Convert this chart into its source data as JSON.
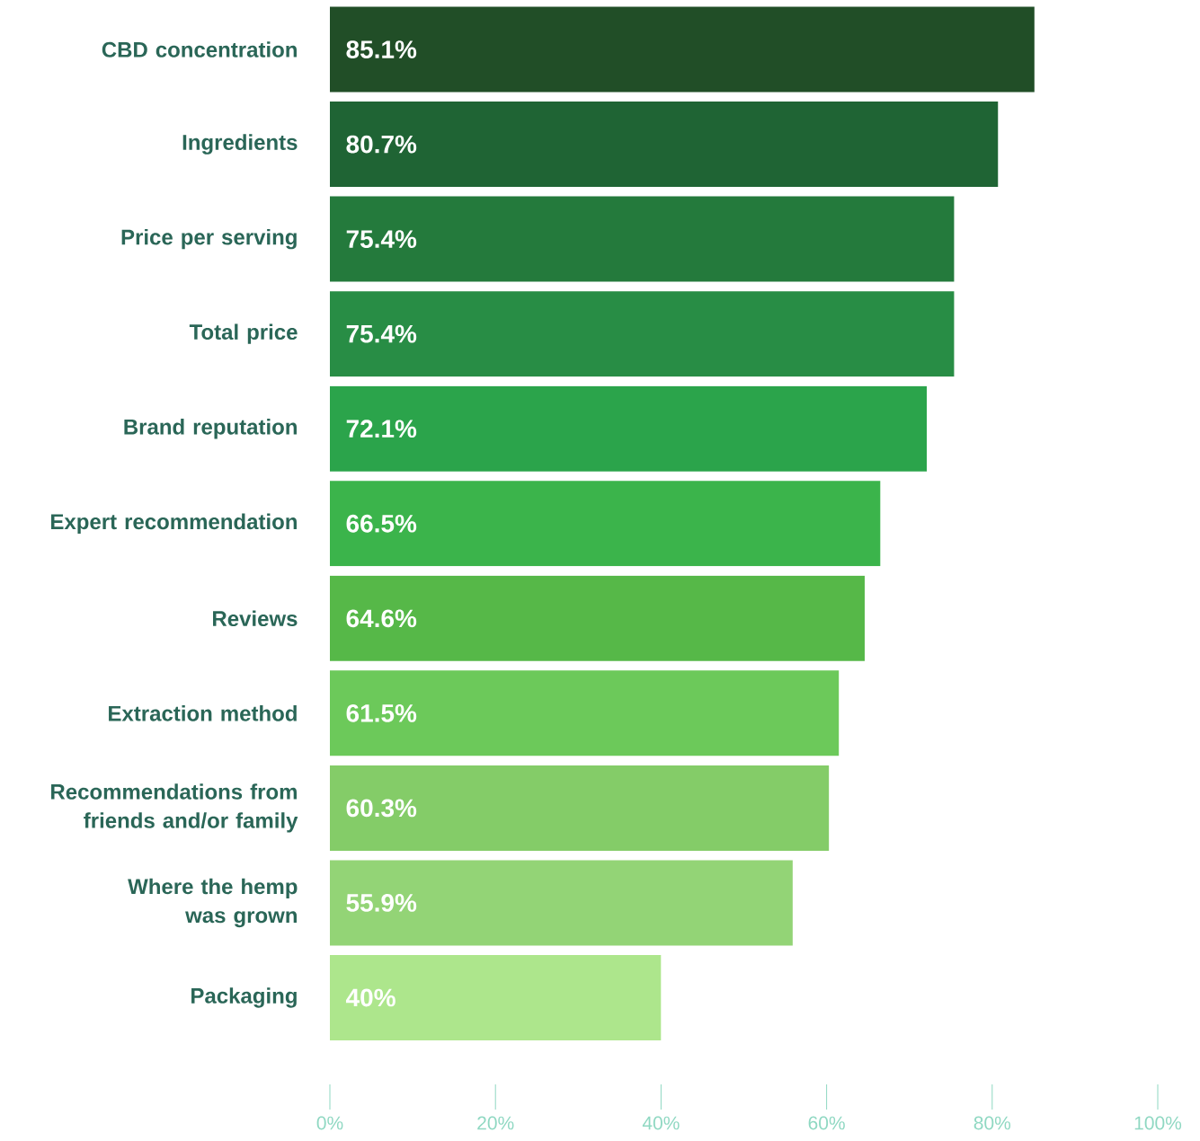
{
  "chart_data": {
    "type": "bar",
    "orientation": "horizontal",
    "categories": [
      "CBD concentration",
      "Ingredients",
      "Price per serving",
      "Total price",
      "Brand reputation",
      "Expert recommendation",
      "Reviews",
      "Extraction method",
      "Recommendations from friends and/or family",
      "Where the hemp was grown",
      "Packaging"
    ],
    "values": [
      85.1,
      80.7,
      75.4,
      75.4,
      72.1,
      66.5,
      64.6,
      61.5,
      60.3,
      55.9,
      40
    ],
    "value_labels": [
      "85.1%",
      "80.7%",
      "75.4%",
      "75.4%",
      "72.1%",
      "66.5%",
      "64.6%",
      "61.5%",
      "60.3%",
      "55.9%",
      "40%"
    ],
    "colors": [
      "#214e27",
      "#1f6434",
      "#247a3c",
      "#288d45",
      "#2ba44b",
      "#3bb44b",
      "#56b848",
      "#6cc95a",
      "#84cc68",
      "#93d476",
      "#ade68c"
    ],
    "xlim": [
      0,
      100
    ],
    "xticks": [
      {
        "value": 0,
        "label": "0%"
      },
      {
        "value": 20,
        "label": "20%"
      },
      {
        "value": 40,
        "label": "40%"
      },
      {
        "value": 60,
        "label": "60%"
      },
      {
        "value": 80,
        "label": "80%"
      },
      {
        "value": 100,
        "label": "100%"
      }
    ],
    "grid": false
  }
}
